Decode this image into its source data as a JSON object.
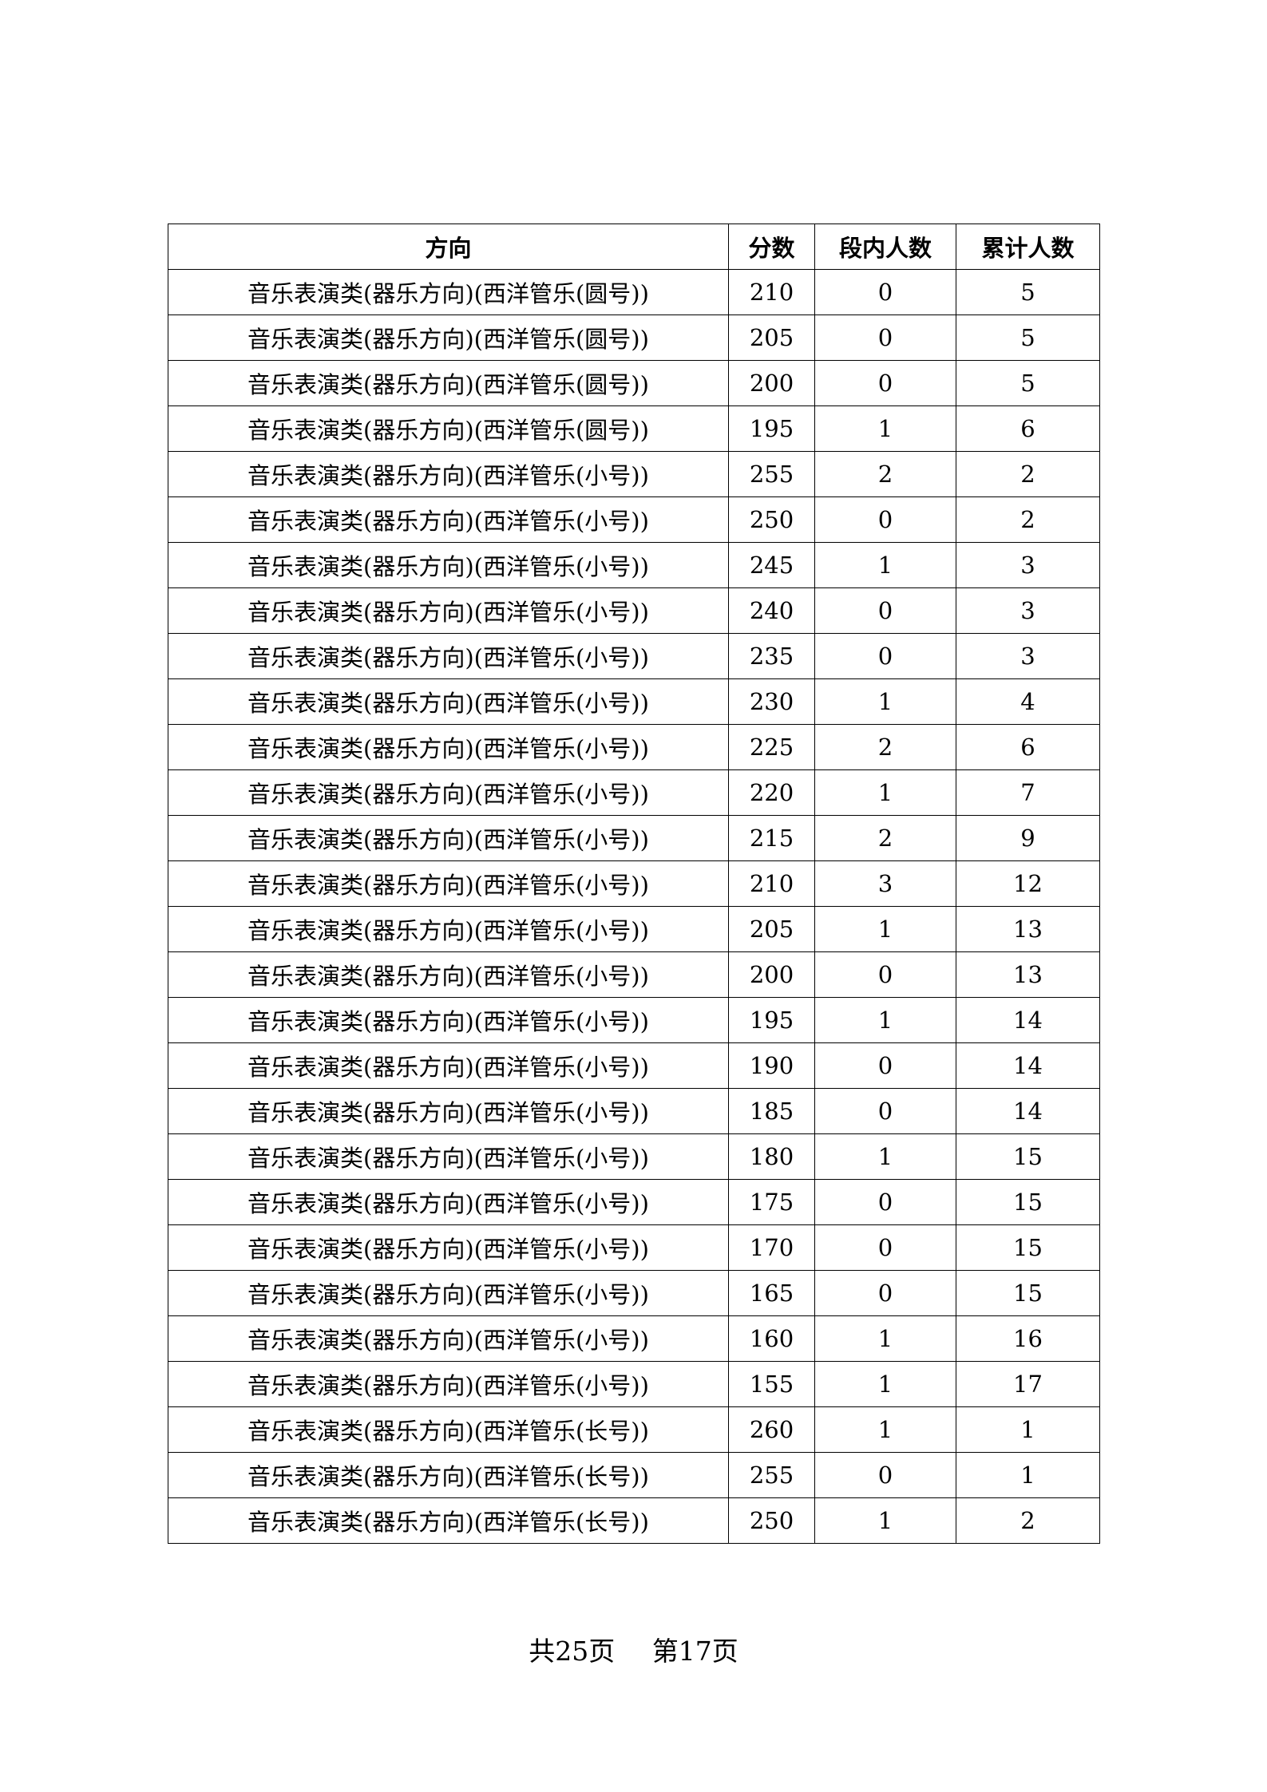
{
  "table": {
    "headers": [
      "方向",
      "分数",
      "段内人数",
      "累计人数"
    ],
    "rows": [
      [
        "音乐表演类(器乐方向)(西洋管乐(圆号))",
        "210",
        "0",
        "5"
      ],
      [
        "音乐表演类(器乐方向)(西洋管乐(圆号))",
        "205",
        "0",
        "5"
      ],
      [
        "音乐表演类(器乐方向)(西洋管乐(圆号))",
        "200",
        "0",
        "5"
      ],
      [
        "音乐表演类(器乐方向)(西洋管乐(圆号))",
        "195",
        "1",
        "6"
      ],
      [
        "音乐表演类(器乐方向)(西洋管乐(小号))",
        "255",
        "2",
        "2"
      ],
      [
        "音乐表演类(器乐方向)(西洋管乐(小号))",
        "250",
        "0",
        "2"
      ],
      [
        "音乐表演类(器乐方向)(西洋管乐(小号))",
        "245",
        "1",
        "3"
      ],
      [
        "音乐表演类(器乐方向)(西洋管乐(小号))",
        "240",
        "0",
        "3"
      ],
      [
        "音乐表演类(器乐方向)(西洋管乐(小号))",
        "235",
        "0",
        "3"
      ],
      [
        "音乐表演类(器乐方向)(西洋管乐(小号))",
        "230",
        "1",
        "4"
      ],
      [
        "音乐表演类(器乐方向)(西洋管乐(小号))",
        "225",
        "2",
        "6"
      ],
      [
        "音乐表演类(器乐方向)(西洋管乐(小号))",
        "220",
        "1",
        "7"
      ],
      [
        "音乐表演类(器乐方向)(西洋管乐(小号))",
        "215",
        "2",
        "9"
      ],
      [
        "音乐表演类(器乐方向)(西洋管乐(小号))",
        "210",
        "3",
        "12"
      ],
      [
        "音乐表演类(器乐方向)(西洋管乐(小号))",
        "205",
        "1",
        "13"
      ],
      [
        "音乐表演类(器乐方向)(西洋管乐(小号))",
        "200",
        "0",
        "13"
      ],
      [
        "音乐表演类(器乐方向)(西洋管乐(小号))",
        "195",
        "1",
        "14"
      ],
      [
        "音乐表演类(器乐方向)(西洋管乐(小号))",
        "190",
        "0",
        "14"
      ],
      [
        "音乐表演类(器乐方向)(西洋管乐(小号))",
        "185",
        "0",
        "14"
      ],
      [
        "音乐表演类(器乐方向)(西洋管乐(小号))",
        "180",
        "1",
        "15"
      ],
      [
        "音乐表演类(器乐方向)(西洋管乐(小号))",
        "175",
        "0",
        "15"
      ],
      [
        "音乐表演类(器乐方向)(西洋管乐(小号))",
        "170",
        "0",
        "15"
      ],
      [
        "音乐表演类(器乐方向)(西洋管乐(小号))",
        "165",
        "0",
        "15"
      ],
      [
        "音乐表演类(器乐方向)(西洋管乐(小号))",
        "160",
        "1",
        "16"
      ],
      [
        "音乐表演类(器乐方向)(西洋管乐(小号))",
        "155",
        "1",
        "17"
      ],
      [
        "音乐表演类(器乐方向)(西洋管乐(长号))",
        "260",
        "1",
        "1"
      ],
      [
        "音乐表演类(器乐方向)(西洋管乐(长号))",
        "255",
        "0",
        "1"
      ],
      [
        "音乐表演类(器乐方向)(西洋管乐(长号))",
        "250",
        "1",
        "2"
      ]
    ]
  },
  "footer": {
    "total_pages": "共25页",
    "current_page": "第17页"
  }
}
